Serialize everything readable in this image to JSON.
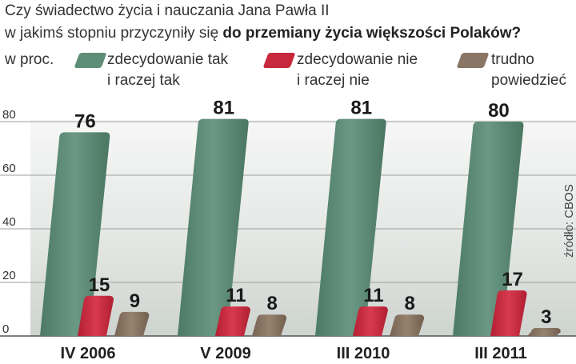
{
  "title_line1": "Czy świadectwo życia i nauczania Jana Pawła II",
  "title_line2_normal": "w jakimś stopniu przyczyniły się",
  "title_line2_bold": "do przemiany życia większości Polaków?",
  "unit": "w proc.",
  "source": "źródło: CBOS",
  "legend": [
    {
      "line1": "zdecydowanie tak",
      "line2": "i raczej tak",
      "color": "#5e8d78"
    },
    {
      "line1": "zdecydowanie nie",
      "line2": "i raczej nie",
      "color": "#c8283c"
    },
    {
      "line1": "trudno",
      "line2": "powiedzieć",
      "color": "#8a7665"
    }
  ],
  "chart_data": {
    "type": "bar",
    "categories": [
      "IV 2006",
      "V 2009",
      "III 2010",
      "III 2011"
    ],
    "series": [
      {
        "name": "zdecydowanie tak i raczej tak",
        "values": [
          76,
          81,
          81,
          80
        ],
        "color": "#5e8d78"
      },
      {
        "name": "zdecydowanie nie i raczej nie",
        "values": [
          15,
          11,
          11,
          17
        ],
        "color": "#c8283c"
      },
      {
        "name": "trudno powiedzieć",
        "values": [
          9,
          8,
          8,
          3
        ],
        "color": "#8a7665"
      }
    ],
    "yticks": [
      0,
      20,
      40,
      60,
      80
    ],
    "ylim": [
      0,
      80
    ],
    "grid": true
  }
}
